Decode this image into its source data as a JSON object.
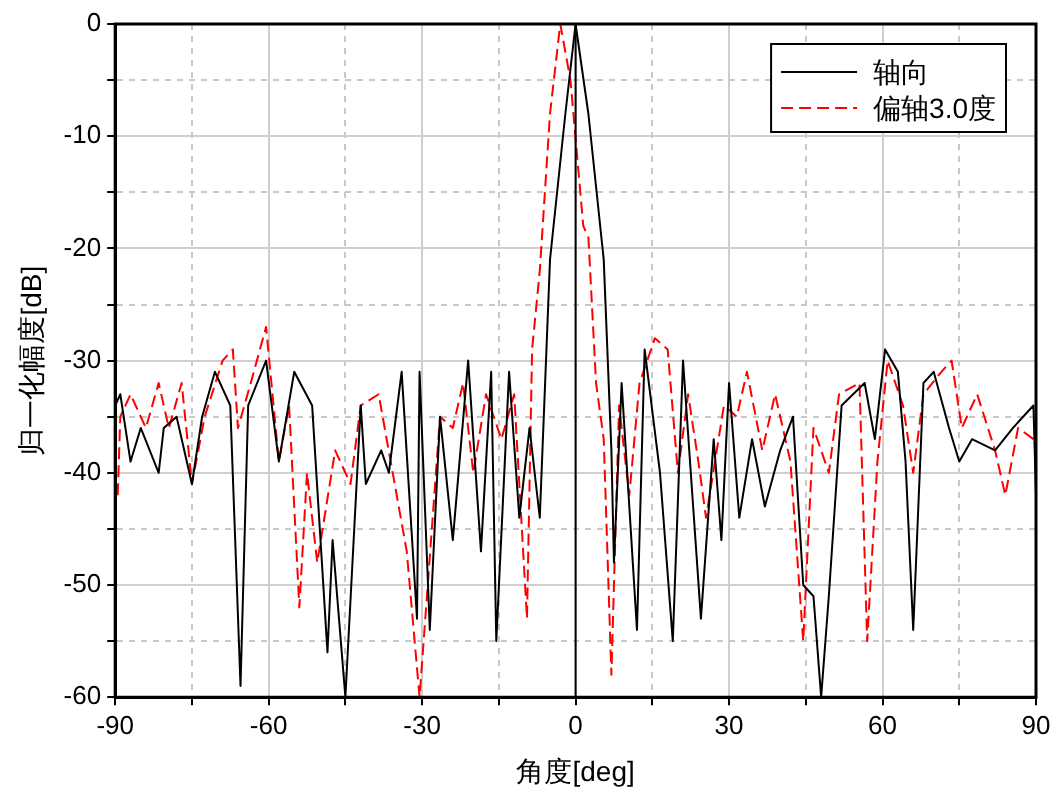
{
  "chart_data": {
    "type": "line",
    "xlabel": "角度[deg]",
    "ylabel": "归一化幅度[dB]",
    "xlim": [
      -90,
      90
    ],
    "ylim": [
      -60,
      0
    ],
    "xticks": [
      -90,
      {
        "value": -75,
        "label": null
      },
      -60,
      {
        "value": -45,
        "label": null
      },
      -30,
      {
        "value": -15,
        "label": null
      },
      0,
      {
        "value": 15,
        "label": null
      },
      30,
      {
        "value": 45,
        "label": null
      },
      60,
      {
        "value": 75,
        "label": null
      },
      90
    ],
    "yticks": [
      -60,
      {
        "value": -55,
        "label": null
      },
      -50,
      {
        "value": -45,
        "label": null
      },
      -40,
      {
        "value": -35,
        "label": null
      },
      -30,
      {
        "value": -25,
        "label": null
      },
      -20,
      {
        "value": -15,
        "label": null
      },
      -10,
      {
        "value": -5,
        "label": null
      },
      0
    ],
    "grid": true,
    "legend": "top right",
    "marker": "none",
    "ref_lines": [
      {
        "axis": "x",
        "value": 0,
        "color": "#000000"
      }
    ],
    "series": [
      {
        "name": "轴向",
        "color": "#000000",
        "line_style": "solid",
        "x": [
          -90,
          -89,
          -87,
          -85,
          -81.5,
          -80.5,
          -78,
          -75,
          -73,
          -70.5,
          -67.5,
          -65.5,
          -64,
          -60.5,
          -58,
          -55,
          -51.5,
          -48.5,
          -47.5,
          -45,
          -42,
          -41,
          -38,
          -36.5,
          -34,
          -31,
          -30.5,
          -28.5,
          -26.5,
          -24,
          -21,
          -18.5,
          -16.5,
          -15.5,
          -13,
          -11,
          -9,
          -7,
          -5,
          -2,
          0,
          2.5,
          5.5,
          7,
          7.5,
          9,
          12,
          13.5,
          16.5,
          19,
          21,
          24.5,
          27,
          28.5,
          30,
          32,
          34.5,
          37,
          40,
          42.5,
          44.5,
          46.5,
          48,
          49.5,
          52,
          56.5,
          58.5,
          60.5,
          63,
          64.5,
          66,
          68,
          70,
          73,
          75,
          77.5,
          82,
          85.5,
          89.5,
          90
        ],
        "values": [
          -34,
          -33,
          -39,
          -36,
          -40,
          -36,
          -35,
          -41,
          -35,
          -31,
          -34,
          -59,
          -34,
          -30,
          -39,
          -31,
          -34,
          -56,
          -46,
          -60,
          -34,
          -41,
          -38,
          -40,
          -31,
          -53,
          -31,
          -54,
          -35,
          -46,
          -30,
          -47,
          -31,
          -55,
          -31,
          -44,
          -36,
          -44,
          -21,
          -8,
          0,
          -8,
          -21,
          -38,
          -48,
          -32,
          -54,
          -29,
          -40,
          -55,
          -30,
          -53,
          -37,
          -46,
          -32,
          -44,
          -37,
          -43,
          -38,
          -35,
          -50,
          -51,
          -60,
          -51,
          -34,
          -32,
          -37,
          -29,
          -31,
          -39,
          -54,
          -32,
          -31,
          -36,
          -39,
          -37,
          -38,
          -36,
          -34,
          -42
        ]
      },
      {
        "name": "偏轴3.0度",
        "color": "#ff0000",
        "line_style": "dashed",
        "x": [
          -89.5,
          -89,
          -87,
          -84,
          -81.5,
          -79.5,
          -77,
          -75,
          -72.5,
          -69,
          -67,
          -66,
          -63.5,
          -60.5,
          -58,
          -56,
          -54,
          -52.5,
          -50.5,
          -47,
          -44,
          -42,
          -38.5,
          -33,
          -30.5,
          -26.5,
          -24,
          -22,
          -20,
          -17.5,
          -14.5,
          -12,
          -9.5,
          -8.5,
          -7,
          -5,
          -3,
          -1,
          1.5,
          2.5,
          4,
          5.5,
          7,
          8.5,
          10.5,
          12.5,
          15.5,
          18,
          20,
          22,
          24,
          25.5,
          29,
          31.5,
          33.5,
          36.5,
          39,
          42,
          44.5,
          46.5,
          49.5,
          51.5,
          55.5,
          57,
          59,
          61,
          64,
          66,
          68,
          71.5,
          73.5,
          75.5,
          78.5,
          82,
          84,
          86.5,
          89.5,
          90
        ],
        "values": [
          -42,
          -35,
          -33,
          -36,
          -32,
          -36,
          -32,
          -41,
          -35,
          -30,
          -29,
          -36,
          -32,
          -27,
          -39,
          -34,
          -52,
          -40,
          -48,
          -38,
          -41,
          -34,
          -33,
          -47,
          -60,
          -35,
          -36,
          -32,
          -40,
          -33,
          -37,
          -33,
          -53,
          -29,
          -22,
          -8,
          0,
          -5,
          -18,
          -19,
          -32,
          -37,
          -58,
          -34,
          -42,
          -32,
          -28,
          -29,
          -40,
          -33,
          -39,
          -44,
          -34,
          -35,
          -31,
          -38,
          -33,
          -39,
          -55,
          -36,
          -40,
          -33,
          -32,
          -55,
          -39,
          -30,
          -34,
          -40,
          -33,
          -31,
          -30,
          -36,
          -33,
          -38,
          -42,
          -36,
          -37,
          -37
        ]
      }
    ]
  }
}
